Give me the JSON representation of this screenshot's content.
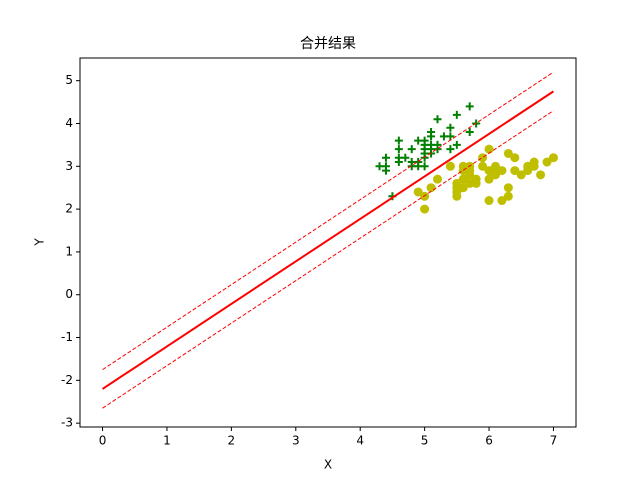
{
  "chart_data": {
    "type": "scatter",
    "title": "合并结果",
    "xlabel": "X",
    "ylabel": "Y",
    "xlim": [
      -0.35,
      7.35
    ],
    "ylim": [
      -3.09,
      5.53
    ],
    "xticks": [
      0,
      1,
      2,
      3,
      4,
      5,
      6,
      7
    ],
    "yticks": [
      -3,
      -2,
      -1,
      0,
      1,
      2,
      3,
      4,
      5
    ],
    "series": [
      {
        "kind": "points",
        "marker": "+",
        "color": "#008000",
        "x": [
          4.3,
          4.4,
          4.4,
          4.4,
          4.5,
          4.6,
          4.6,
          4.6,
          4.6,
          4.7,
          4.8,
          4.8,
          4.8,
          4.9,
          4.9,
          4.9,
          5.0,
          5.0,
          5.0,
          5.0,
          5.0,
          5.0,
          5.1,
          5.1,
          5.1,
          5.1,
          5.1,
          5.2,
          5.2,
          5.2,
          5.3,
          5.4,
          5.4,
          5.4,
          5.5,
          5.5,
          5.7,
          5.7,
          5.8,
          7.0
        ],
        "y": [
          3.0,
          2.9,
          3.0,
          3.2,
          2.3,
          3.1,
          3.2,
          3.4,
          3.6,
          3.2,
          3.0,
          3.1,
          3.4,
          3.0,
          3.1,
          3.6,
          3.0,
          3.2,
          3.3,
          3.4,
          3.5,
          3.6,
          3.3,
          3.4,
          3.5,
          3.7,
          3.8,
          3.4,
          3.5,
          4.1,
          3.7,
          3.4,
          3.7,
          3.9,
          3.5,
          4.2,
          3.8,
          4.4,
          4.0,
          3.2
        ]
      },
      {
        "kind": "points",
        "marker": "o",
        "color": "#bfbf00",
        "x": [
          4.9,
          5.0,
          5.0,
          5.1,
          5.2,
          5.4,
          5.5,
          5.5,
          5.5,
          5.5,
          5.6,
          5.6,
          5.6,
          5.6,
          5.7,
          5.7,
          5.7,
          5.7,
          5.8,
          5.8,
          5.9,
          5.9,
          6.0,
          6.0,
          6.0,
          6.0,
          6.1,
          6.1,
          6.1,
          6.2,
          6.2,
          6.3,
          6.3,
          6.3,
          6.4,
          6.4,
          6.5,
          6.6,
          6.6,
          6.7,
          6.7,
          6.8,
          6.9,
          7.0
        ],
        "y": [
          2.4,
          2.0,
          2.3,
          2.5,
          2.7,
          3.0,
          2.3,
          2.4,
          2.5,
          2.6,
          2.5,
          2.7,
          2.9,
          3.0,
          2.6,
          2.8,
          2.9,
          3.0,
          2.6,
          2.7,
          3.0,
          3.2,
          2.2,
          2.7,
          2.9,
          3.4,
          2.8,
          2.9,
          3.0,
          2.2,
          2.9,
          2.3,
          2.5,
          3.3,
          2.9,
          3.2,
          2.8,
          2.9,
          3.0,
          3.0,
          3.1,
          2.8,
          3.1,
          3.2
        ]
      },
      {
        "kind": "line",
        "style": "solid",
        "color": "#ff0000",
        "x": [
          0,
          7
        ],
        "y": [
          -2.2,
          4.75
        ]
      },
      {
        "kind": "line",
        "style": "dashed",
        "color": "#ff0000",
        "x": [
          0,
          7
        ],
        "y": [
          -1.75,
          5.2
        ]
      },
      {
        "kind": "line",
        "style": "dashed",
        "color": "#ff0000",
        "x": [
          0,
          7
        ],
        "y": [
          -2.65,
          4.3
        ]
      }
    ]
  }
}
